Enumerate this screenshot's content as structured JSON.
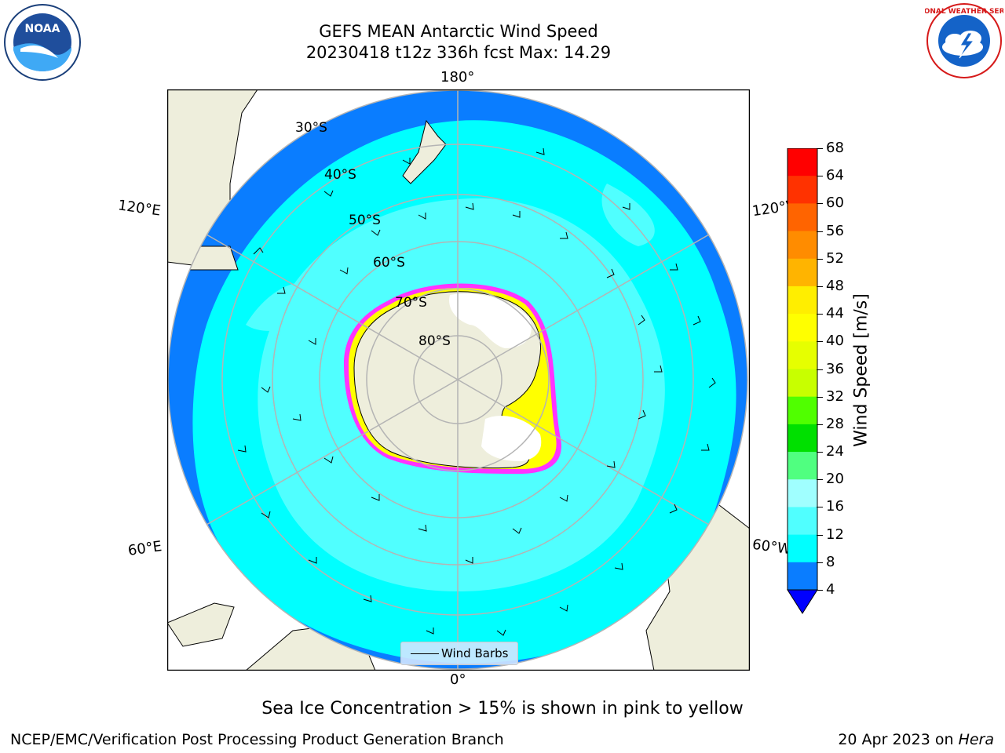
{
  "header": {
    "title_line1": "GEFS MEAN Antarctic Wind Speed",
    "title_line2": "20230418 t12z 336h fcst   Max: 14.29"
  },
  "logos": {
    "noaa_text": "NOAA",
    "nws_text": "NATIONAL WEATHER SERVICE"
  },
  "map": {
    "projection": "south-polar-stereographic",
    "longitude_labels": {
      "top": "180°",
      "bottom": "0°",
      "upper_left": "120°E",
      "upper_right": "120°W",
      "lower_left": "60°E",
      "lower_right": "60°W"
    },
    "latitude_labels": [
      "30°S",
      "40°S",
      "50°S",
      "60°S",
      "70°S",
      "80°S"
    ],
    "legend_label": "Wind Barbs",
    "colors": {
      "land": "#eeeedc",
      "ocean_4_8": "#0a7dff",
      "ocean_8_12": "#00ffff",
      "ocean_12_16": "#50ffff",
      "ice": "#ffffff",
      "sea_ice_edge": [
        "#ff33ff",
        "#ffff00"
      ],
      "gridlines": "#b4b4b4"
    }
  },
  "colorbar": {
    "label": "Wind Speed [m/s]",
    "ticks": [
      "4",
      "8",
      "12",
      "16",
      "20",
      "24",
      "28",
      "32",
      "36",
      "40",
      "44",
      "48",
      "52",
      "56",
      "60",
      "64",
      "68"
    ],
    "colors": [
      "#0a7dff",
      "#00ffff",
      "#50ffff",
      "#a0ffff",
      "#50ff80",
      "#00e000",
      "#50ff00",
      "#c8ff00",
      "#e6ff00",
      "#ffff00",
      "#ffee00",
      "#ffb400",
      "#ff8c00",
      "#ff6400",
      "#ff3200",
      "#ff0000"
    ],
    "under_color": "#0000ff"
  },
  "notes": {
    "sea_ice": "Sea Ice Concentration > 15% is shown in pink to yellow"
  },
  "footer": {
    "left": "NCEP/EMC/Verification Post Processing Product Generation Branch",
    "right_prefix": "20 Apr 2023 on ",
    "right_italic": "Hera"
  }
}
